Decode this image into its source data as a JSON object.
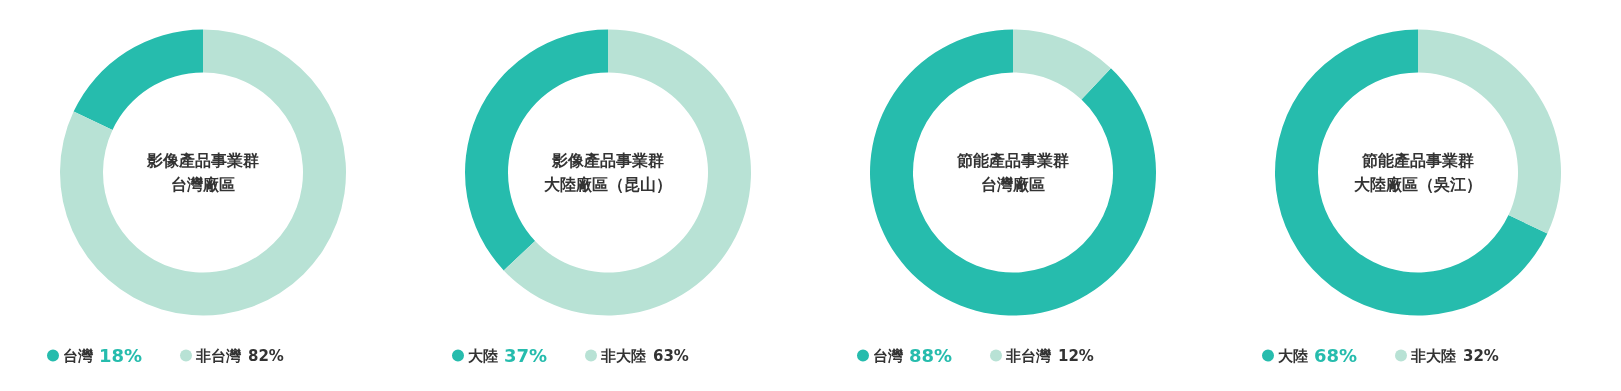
{
  "chart_data": [
    {
      "type": "donut",
      "title": "影像產品事業群",
      "subtitle": "台灣廠區",
      "categories": [
        "台灣",
        "非台灣"
      ],
      "values": [
        18,
        82
      ],
      "value_labels": [
        "18%",
        "82%"
      ],
      "colors": [
        "#26bcad",
        "#b8e2d5"
      ],
      "legend": "bottom"
    },
    {
      "type": "donut",
      "title": "影像產品事業群",
      "subtitle": "大陸廠區（昆山）",
      "categories": [
        "大陸",
        "非大陸"
      ],
      "values": [
        37,
        63
      ],
      "value_labels": [
        "37%",
        "63%"
      ],
      "colors": [
        "#26bcad",
        "#b8e2d5"
      ],
      "legend": "bottom"
    },
    {
      "type": "donut",
      "title": "節能產品事業群",
      "subtitle": "台灣廠區",
      "categories": [
        "台灣",
        "非台灣"
      ],
      "values": [
        88,
        12
      ],
      "value_labels": [
        "88%",
        "12%"
      ],
      "colors": [
        "#26bcad",
        "#b8e2d5"
      ],
      "legend": "bottom"
    },
    {
      "type": "donut",
      "title": "節能產品事業群",
      "subtitle": "大陸廠區（吳江）",
      "categories": [
        "大陸",
        "非大陸"
      ],
      "values": [
        68,
        32
      ],
      "value_labels": [
        "68%",
        "32%"
      ],
      "colors": [
        "#26bcad",
        "#b8e2d5"
      ],
      "legend": "bottom"
    }
  ]
}
